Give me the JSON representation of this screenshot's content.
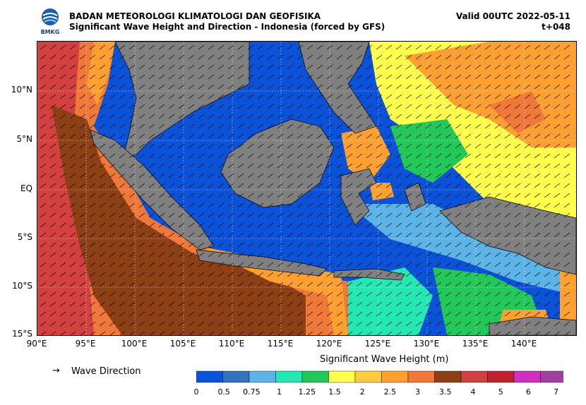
{
  "header": {
    "agency": "BADAN METEOROLOGI KLIMATOLOGI DAN GEOFISIKA",
    "product": "Significant Wave Height and Direction - Indonesia (forced by GFS)",
    "valid": "Valid 00UTC 2022-05-11",
    "lead_time": "t+048",
    "logo_text": "BMKG"
  },
  "map": {
    "lat_labels": [
      "10°N",
      "5°N",
      "EQ",
      "5°S",
      "10°S",
      "15°S"
    ],
    "lon_labels": [
      "90°E",
      "95°E",
      "100°E",
      "105°E",
      "110°E",
      "115°E",
      "120°E",
      "125°E",
      "130°E",
      "135°E",
      "140°E"
    ],
    "land_color": "#808080",
    "dominant_wave_direction": "southeasterly flow south of equator, northeasterly north of equator"
  },
  "legend": {
    "arrow_glyph": "→",
    "arrow_label": "Wave Direction"
  },
  "colorbar": {
    "title": "Significant Wave Height (m)",
    "ticks": [
      "0",
      "0.5",
      "0.75",
      "1",
      "1.25",
      "1.5",
      "2",
      "2.5",
      "3",
      "3.5",
      "4",
      "5",
      "6",
      "7"
    ],
    "colors": [
      "#0a52d8",
      "#3272c0",
      "#5cb4e6",
      "#24e8b4",
      "#22c95a",
      "#ffff4c",
      "#ffcc40",
      "#ffa030",
      "#f07838",
      "#8c4014",
      "#d24040",
      "#c02030",
      "#d030c0",
      "#a040a0"
    ]
  }
}
